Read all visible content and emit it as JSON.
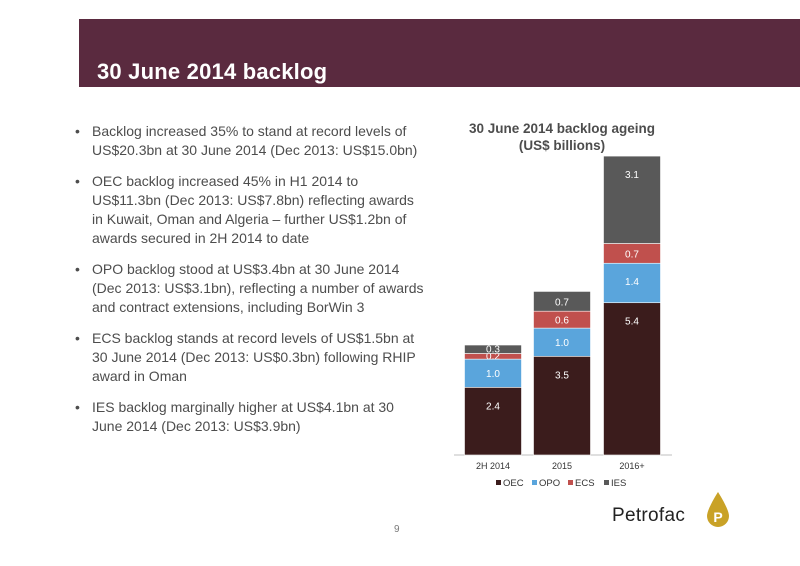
{
  "slide": {
    "title": "30 June 2014 backlog",
    "page_number": "9",
    "bullets": [
      "Backlog increased 35% to stand at record levels of US$20.3bn at 30 June 2014 (Dec 2013: US$15.0bn)",
      "OEC backlog increased 45% in H1 2014 to US$11.3bn (Dec 2013: US$7.8bn) reflecting awards in Kuwait, Oman and Algeria – further US$1.2bn of awards secured in 2H 2014 to date",
      "OPO backlog stood at US$3.4bn at 30 June 2014 (Dec 2013: US$3.1bn), reflecting a number of awards and contract extensions, including BorWin 3",
      "ECS backlog stands at record levels of US$1.5bn at 30 June 2014 (Dec 2013: US$0.3bn) following RHIP award in Oman",
      "IES backlog marginally higher at US$4.1bn at 30 June 2014 (Dec 2013: US$3.9bn)"
    ],
    "logo": {
      "text": "Petrofac",
      "icon": "petrofac-droplet-icon",
      "icon_letter": "P"
    },
    "colors": {
      "title_bar": "#5a2a3f",
      "logo_gold": "#c9a227"
    }
  },
  "chart_data": {
    "type": "bar",
    "stacked": true,
    "title": "30 June 2014 backlog ageing (US$ billions)",
    "categories": [
      "2H 2014",
      "2015",
      "2016+"
    ],
    "series": [
      {
        "name": "OEC",
        "values": [
          2.4,
          3.5,
          5.4
        ],
        "color": "#3b1c1c"
      },
      {
        "name": "OPO",
        "values": [
          1.0,
          1.0,
          1.4
        ],
        "color": "#5aa5dc"
      },
      {
        "name": "ECS",
        "values": [
          0.2,
          0.6,
          0.7
        ],
        "color": "#c0504d"
      },
      {
        "name": "IES",
        "values": [
          0.3,
          0.7,
          3.1
        ],
        "color": "#595959"
      }
    ],
    "legend_position": "bottom",
    "grid": false
  }
}
